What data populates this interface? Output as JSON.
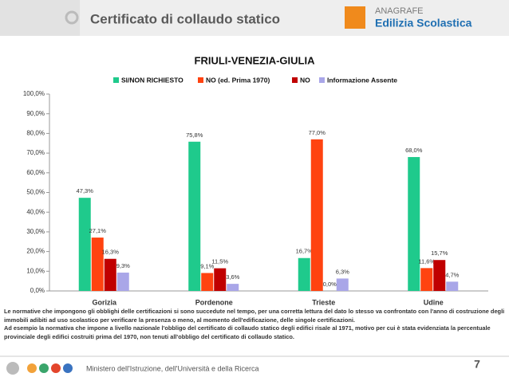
{
  "header": {
    "title": "Certificato di collaudo statico",
    "logo_top": "ANAGRAFE",
    "logo_bottom": "Edilizia Scolastica"
  },
  "chart_data": {
    "type": "bar",
    "title": "FRIULI-VENEZIA-GIULIA",
    "categories": [
      "Gorizia",
      "Pordenone",
      "Trieste",
      "Udine"
    ],
    "series": [
      {
        "name": "SI/NON RICHIESTO",
        "color": "#1fca8c",
        "values": [
          47.3,
          75.8,
          16.7,
          68.0
        ],
        "value_labels": [
          "47,3%",
          "75,8%",
          "16,7%",
          "68,0%"
        ]
      },
      {
        "name": "NO (ed. Prima 1970)",
        "color": "#ff4310",
        "values": [
          27.1,
          9.1,
          77.0,
          11.6
        ],
        "value_labels": [
          "27,1%",
          "9,1%",
          "77,0%",
          "11,6%"
        ]
      },
      {
        "name": "NO",
        "color": "#c00000",
        "values": [
          16.3,
          11.5,
          0.0,
          15.7
        ],
        "value_labels": [
          "16,3%",
          "11,5%",
          "0,0%",
          "15,7%"
        ]
      },
      {
        "name": "Informazione Assente",
        "color": "#a9a6e8",
        "values": [
          9.3,
          3.6,
          6.3,
          4.7
        ],
        "value_labels": [
          "9,3%",
          "3,6%",
          "6,3%",
          "4,7%"
        ]
      }
    ],
    "ylim": [
      0,
      100
    ],
    "yticks": [
      {
        "value": 0,
        "label": "0,0%"
      },
      {
        "value": 10,
        "label": "10,0%"
      },
      {
        "value": 20,
        "label": "20,0%"
      },
      {
        "value": 30,
        "label": "30,0%"
      },
      {
        "value": 40,
        "label": "40,0%"
      },
      {
        "value": 50,
        "label": "50,0%"
      },
      {
        "value": 60,
        "label": "60,0%"
      },
      {
        "value": 70,
        "label": "70,0%"
      },
      {
        "value": 80,
        "label": "80,0%"
      },
      {
        "value": 90,
        "label": "90,0%"
      },
      {
        "value": 100,
        "label": "100,0%"
      }
    ],
    "legend": "top"
  },
  "notes": [
    "Le normative che impongono gli obblighi delle certificazioni si sono succedute nel tempo, per una corretta lettura del dato lo stesso va confrontato con l'anno di costruzione degli immobili adibiti ad uso scolastico per verificare la presenza o meno, al momento dell'edificazione, delle singole certificazioni.",
    "Ad esempio la normativa che impone a livello nazionale l'obbligo del certificato di collaudo statico degli edifici risale al 1971, motivo per cui è stata evidenziata la percentuale provinciale degli edifici costruiti prima del 1970, non tenuti all'obbligo del certificato di collaudo statico."
  ],
  "footer": {
    "ministry": "Ministero dell'Istruzione, dell'Università e della Ricerca",
    "page": "7"
  }
}
